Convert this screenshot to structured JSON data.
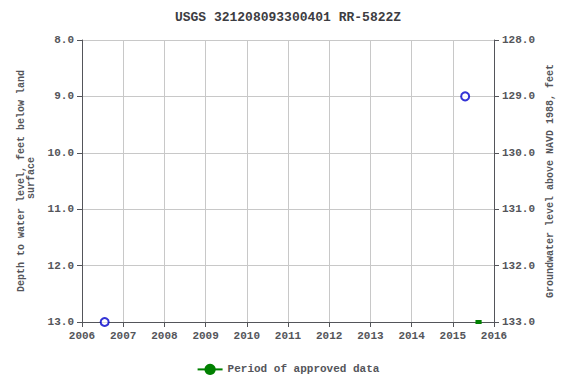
{
  "chart_data": {
    "type": "scatter",
    "title": "USGS 321208093300401 RR-5822Z",
    "ylabel": "Depth to water level, feet below land\n surface",
    "y2label": "Groundwater level above NAVD 1988, feet",
    "xlim": [
      2006,
      2016
    ],
    "xticks": [
      2006,
      2007,
      2008,
      2009,
      2010,
      2011,
      2012,
      2013,
      2014,
      2015,
      2016
    ],
    "ylim": [
      13.0,
      8.0
    ],
    "yticks": [
      {
        "value": 8.0,
        "label": "8.0"
      },
      {
        "value": 9.0,
        "label": "9.0"
      },
      {
        "value": 10.0,
        "label": "10.0"
      },
      {
        "value": 11.0,
        "label": "11.0"
      },
      {
        "value": 12.0,
        "label": "12.0"
      },
      {
        "value": 13.0,
        "label": "13.0"
      }
    ],
    "y2lim": [
      133.0,
      128.0
    ],
    "y2ticks": [
      {
        "value": 133.0,
        "label": "133.0"
      },
      {
        "value": 132.0,
        "label": "132.0"
      },
      {
        "value": 131.0,
        "label": "131.0"
      },
      {
        "value": 130.0,
        "label": "130.0"
      },
      {
        "value": 129.0,
        "label": "129.0"
      },
      {
        "value": 128.0,
        "label": "128.0"
      }
    ],
    "grid": true,
    "legend": "bottom",
    "series": [
      {
        "type": "scatter",
        "marker": "circle_open",
        "color": "#0000cc",
        "x": [
          2006.55,
          2015.3
        ],
        "values": [
          13.0,
          9.0
        ]
      },
      {
        "type": "line",
        "name": "Period of approved data",
        "line_style": "solid",
        "color": "#008000",
        "x": [
          2015.55,
          2015.7
        ],
        "values": [
          13.0,
          13.0
        ]
      }
    ]
  }
}
